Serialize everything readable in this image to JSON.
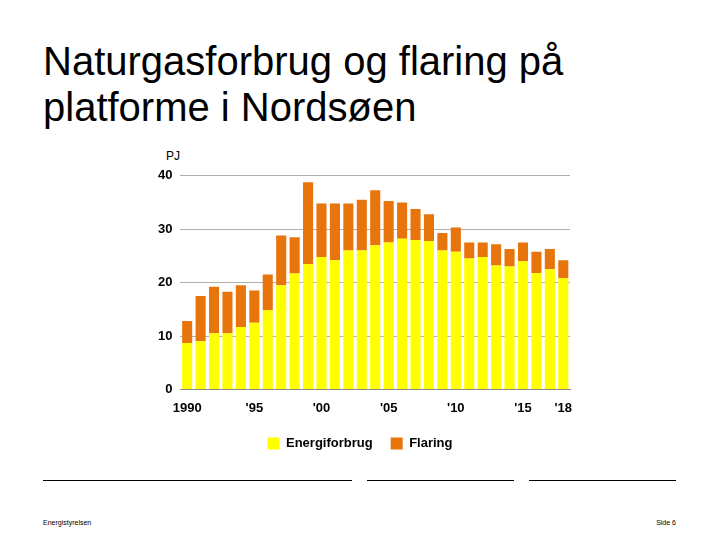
{
  "chart_data": {
    "type": "bar",
    "title": "Naturgasforbrug og flaring på platforme i Nordsøen",
    "y_label": "PJ",
    "categories": [
      "1990",
      null,
      null,
      null,
      null,
      "'95",
      null,
      null,
      null,
      null,
      "'00",
      null,
      null,
      null,
      null,
      "'05",
      null,
      null,
      null,
      null,
      "'10",
      null,
      null,
      null,
      null,
      "'15",
      null,
      null,
      "'18"
    ],
    "series": [
      {
        "name": "Energiforbrug",
        "color": "#ffff00",
        "values": [
          8.7,
          9,
          10.5,
          10.5,
          11.7,
          12.5,
          14.8,
          19.5,
          21.7,
          23.5,
          24.8,
          24.2,
          26,
          26,
          27,
          27.5,
          28.2,
          28,
          27.8,
          26,
          25.8,
          24.5,
          24.8,
          23.2,
          23,
          24,
          21.8,
          22.5,
          20.8
        ]
      },
      {
        "name": "Flaring",
        "color": "#e8740c",
        "values": [
          4.1,
          8.5,
          8.7,
          7.8,
          7.8,
          6,
          6.7,
          9.3,
          6.8,
          15.3,
          10,
          10.6,
          8.8,
          9.5,
          10.3,
          7.8,
          6.8,
          5.8,
          5,
          3.3,
          4.5,
          3,
          2.7,
          4,
          3.3,
          3.5,
          4,
          3.8,
          3.4
        ]
      }
    ],
    "stacked": true,
    "ylim": [
      0,
      40
    ],
    "yticks": [
      0,
      10,
      20,
      30,
      40
    ],
    "grid": true,
    "legend": "bottom"
  },
  "footer": {
    "source": "Energistyrelsen",
    "page": "Side 6"
  }
}
